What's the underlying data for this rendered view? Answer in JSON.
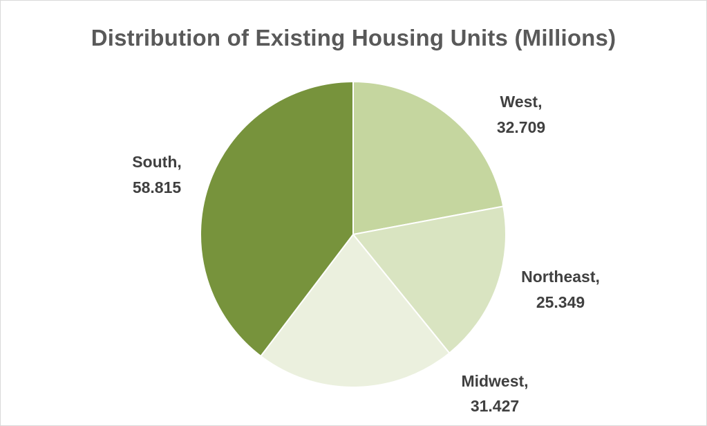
{
  "chart_data": {
    "type": "pie",
    "title": "Distribution of Existing Housing Units (Millions)",
    "slices": [
      {
        "label": "West",
        "value": 32.709,
        "value_text": "32.709",
        "color": "#c5d69f"
      },
      {
        "label": "Northeast",
        "value": 25.349,
        "value_text": "25.349",
        "color": "#d9e4c1"
      },
      {
        "label": "Midwest",
        "value": 31.427,
        "value_text": "31.427",
        "color": "#ebf0de"
      },
      {
        "label": "South",
        "value": 58.815,
        "value_text": "58.815",
        "color": "#77933c"
      }
    ],
    "start_angle_deg": 0,
    "direction": "clockwise",
    "slice_border_color": "#ffffff",
    "data_labels": "outside",
    "legend": "none"
  }
}
